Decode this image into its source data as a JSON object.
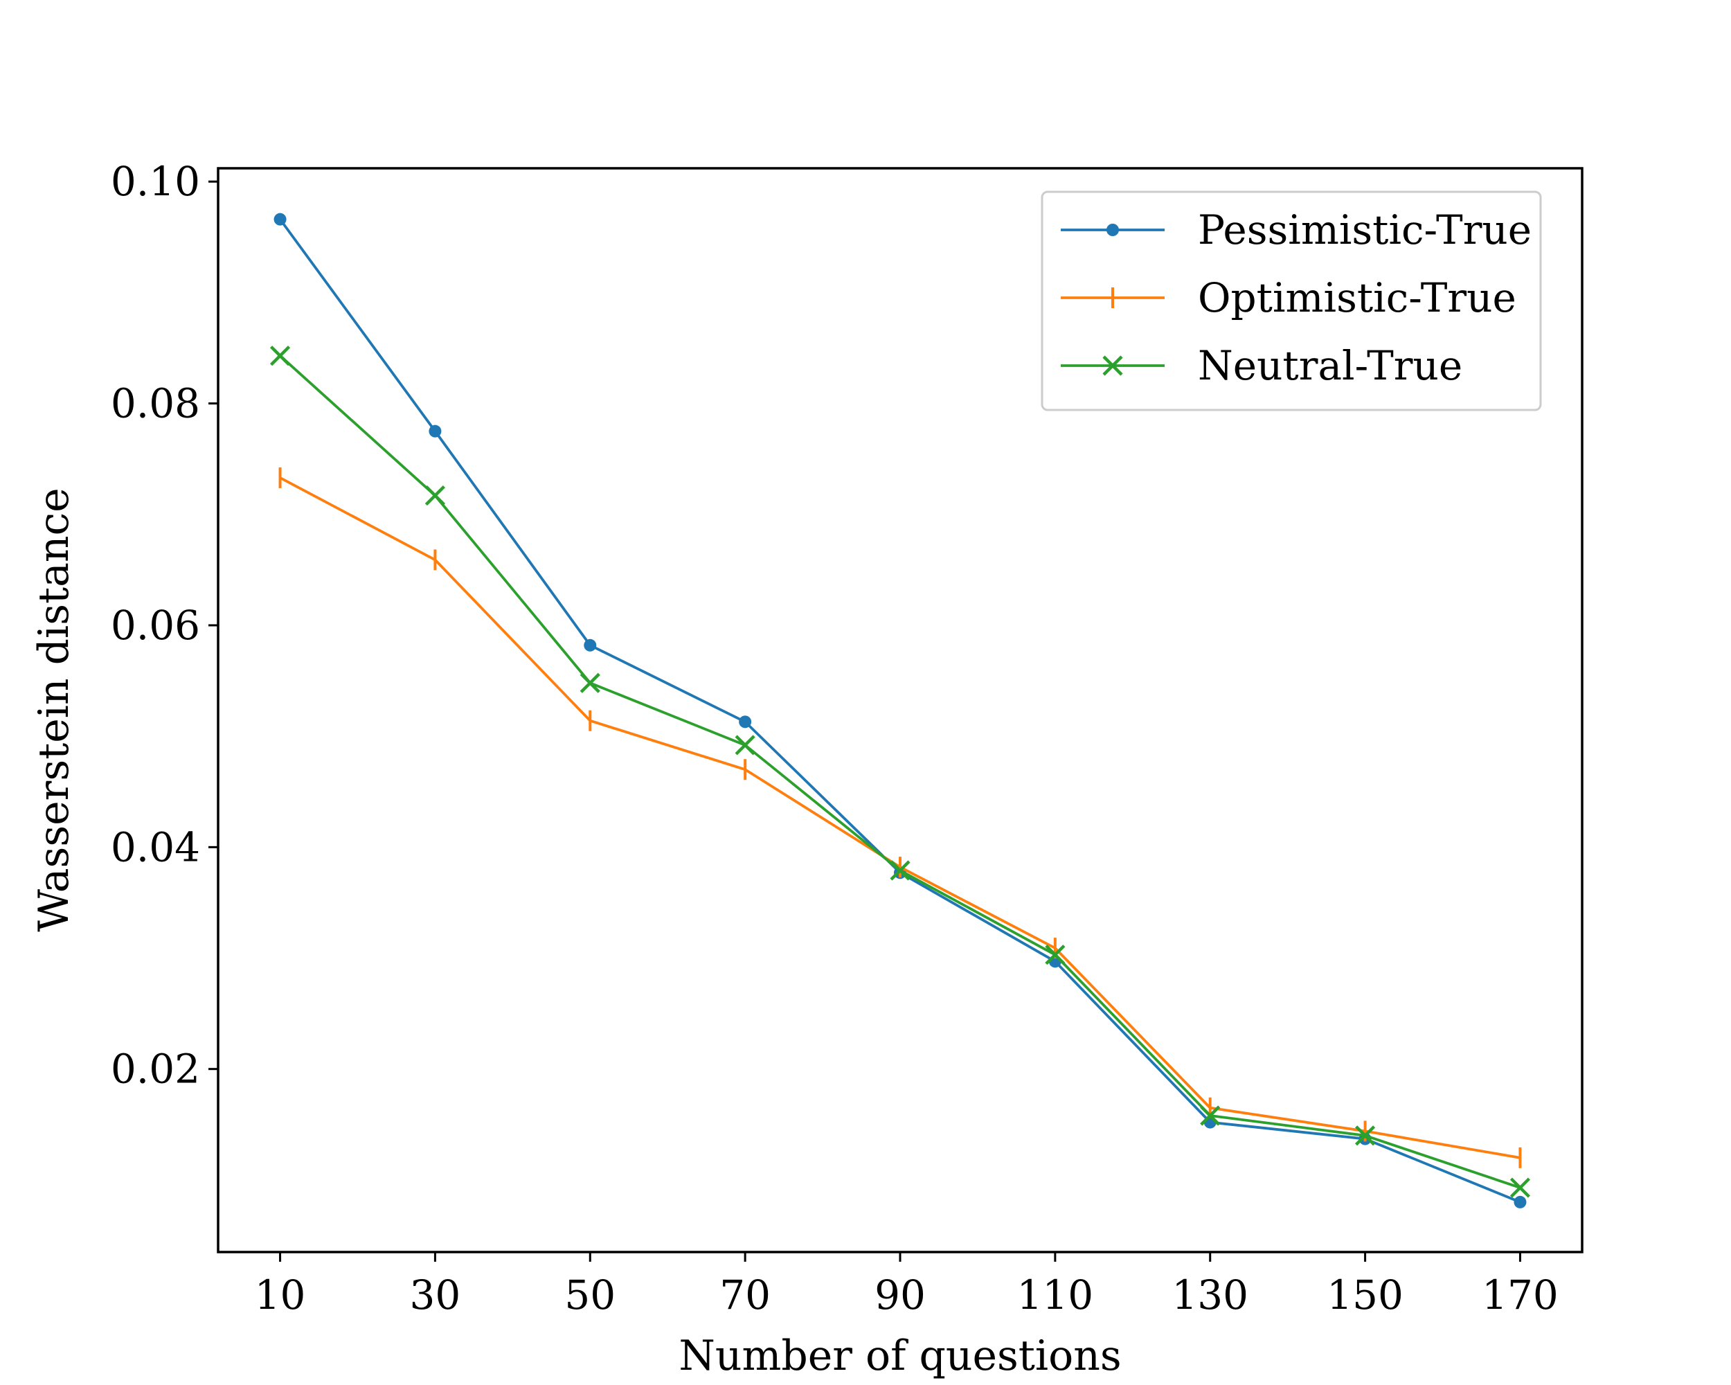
{
  "chart_data": {
    "type": "line",
    "title": "",
    "xlabel": "Number of questions",
    "ylabel": "Wasserstein distance",
    "categories": [
      "10",
      "30",
      "50",
      "70",
      "90",
      "110",
      "130",
      "150",
      "170"
    ],
    "x": [
      10,
      30,
      50,
      70,
      90,
      110,
      130,
      150,
      170
    ],
    "xlim": [
      2,
      178
    ],
    "ylim": [
      0.0035,
      0.1012
    ],
    "yticks": [
      0.02,
      0.04,
      0.06,
      0.08,
      0.1
    ],
    "ytick_labels": [
      "0.02",
      "0.04",
      "0.06",
      "0.08",
      "0.10"
    ],
    "grid": false,
    "legend_position": "top-right",
    "series": [
      {
        "name": "Pessimistic-True",
        "color": "#1f77b4",
        "marker": "dot",
        "values": [
          0.0966,
          0.0775,
          0.0582,
          0.0513,
          0.0377,
          0.0297,
          0.0152,
          0.0137,
          0.008
        ]
      },
      {
        "name": "Optimistic-True",
        "color": "#ff7f0e",
        "marker": "vline",
        "values": [
          0.0733,
          0.0659,
          0.0514,
          0.047,
          0.0382,
          0.0309,
          0.0165,
          0.0144,
          0.012
        ]
      },
      {
        "name": "Neutral-True",
        "color": "#2ca02c",
        "marker": "x",
        "values": [
          0.0843,
          0.0717,
          0.0548,
          0.0492,
          0.0379,
          0.0303,
          0.0158,
          0.014,
          0.0093
        ]
      }
    ]
  }
}
